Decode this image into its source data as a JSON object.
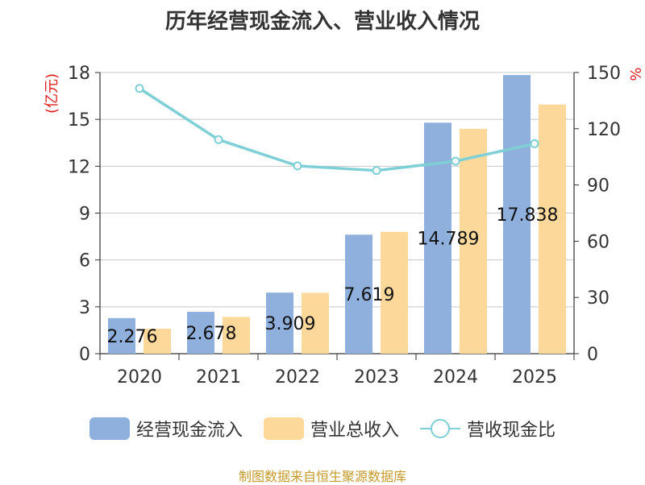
{
  "chart_data": {
    "type": "bar",
    "title": "历年经营现金流入、营业收入情况",
    "categories": [
      "2020",
      "2021",
      "2022",
      "2023",
      "2024",
      "2025"
    ],
    "series": [
      {
        "name": "经营现金流入",
        "type": "bar",
        "color": "#8fafdc",
        "values": [
          2.276,
          2.678,
          3.909,
          7.619,
          14.789,
          17.838
        ],
        "data_labels": [
          "2.276",
          "2.678",
          "3.909",
          "7.619",
          "14.789",
          "17.838"
        ]
      },
      {
        "name": "营业总收入",
        "type": "bar",
        "color": "#fdd89b",
        "values": [
          1.6,
          2.35,
          3.9,
          7.8,
          14.4,
          15.95
        ]
      },
      {
        "name": "营收现金比",
        "type": "line",
        "axis": "right",
        "color": "#7fd0d6",
        "values": [
          141.5,
          114.2,
          100.2,
          97.7,
          102.7,
          112.0
        ]
      }
    ],
    "y_left": {
      "label": "(亿元)",
      "ylim": [
        0,
        18
      ],
      "ticks": [
        0,
        3,
        6,
        9,
        12,
        15,
        18
      ]
    },
    "y_right": {
      "label": "%",
      "ylim": [
        0,
        150
      ],
      "ticks": [
        0,
        30,
        60,
        90,
        120,
        150
      ]
    },
    "grid": true,
    "legend_position": "bottom"
  },
  "source_note": "制图数据来自恒生聚源数据库"
}
